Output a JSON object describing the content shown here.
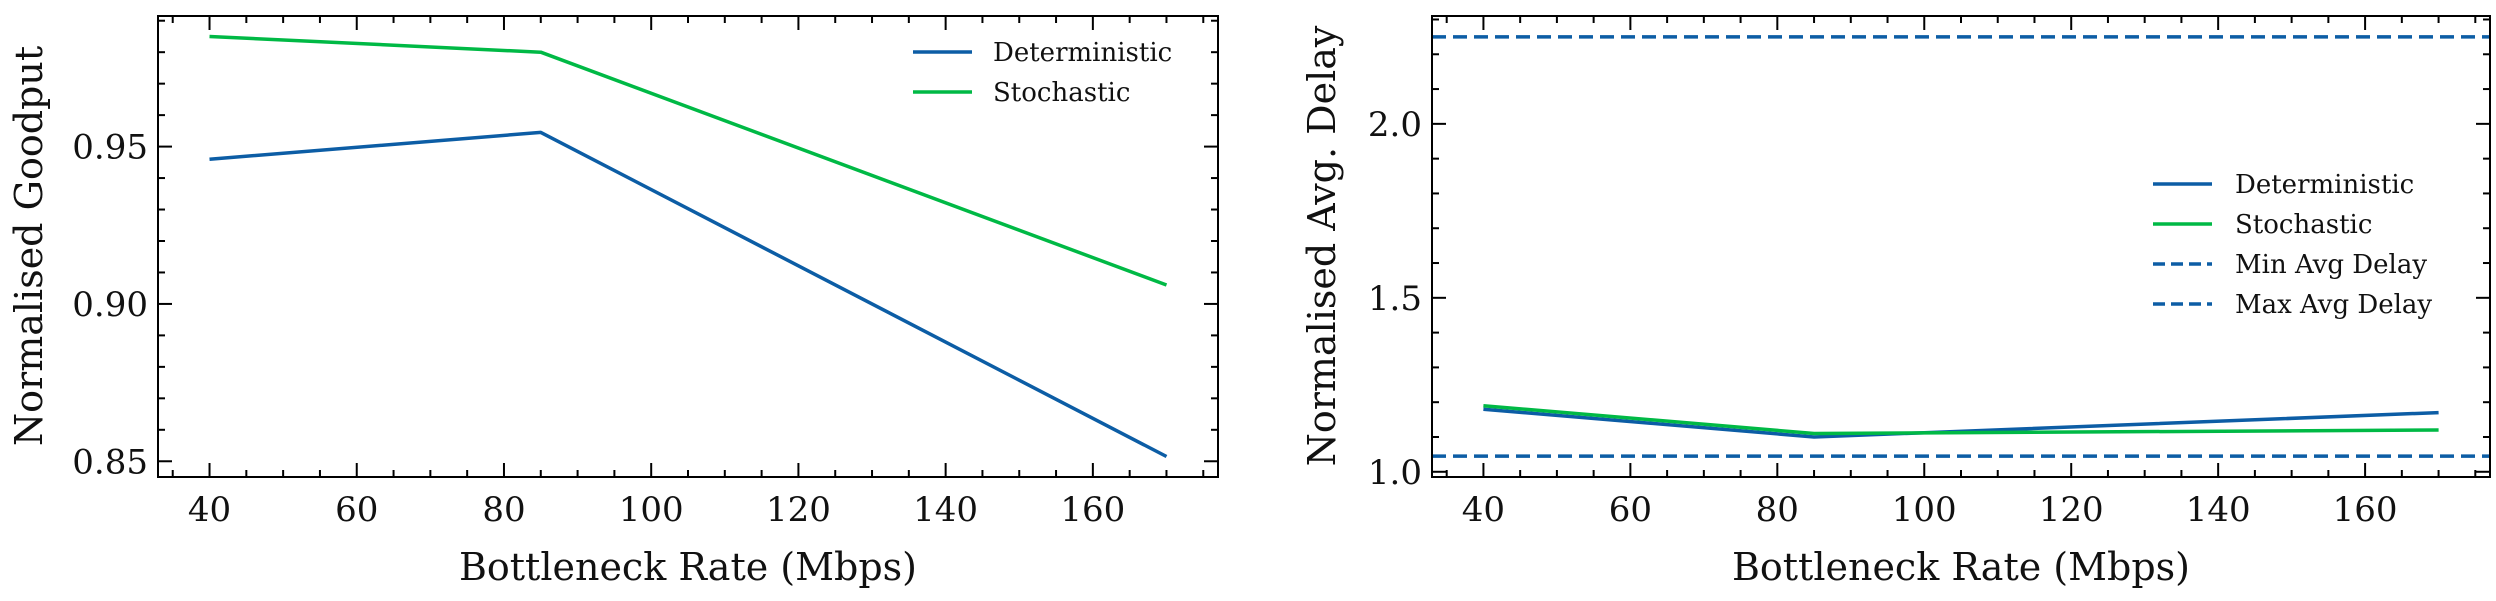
{
  "colors": {
    "blue": "#0C5DA5",
    "green": "#00B945",
    "axis": "#000000"
  },
  "chart_data": [
    {
      "type": "line",
      "xlabel": "Bottleneck Rate (Mbps)",
      "ylabel": "Normalised Goodput",
      "xlim": [
        33,
        177
      ],
      "ylim": [
        0.845,
        0.9915
      ],
      "xticks": [
        40,
        60,
        80,
        100,
        120,
        140,
        160
      ],
      "xtick_labels": [
        "40",
        "60",
        "80",
        "100",
        "120",
        "140",
        "160"
      ],
      "yticks": [
        0.85,
        0.9,
        0.95
      ],
      "ytick_labels": [
        "0.85",
        "0.90",
        "0.95"
      ],
      "x": [
        40,
        85,
        170
      ],
      "series": [
        {
          "name": "Deterministic",
          "values": [
            0.946,
            0.9545,
            0.8515
          ],
          "color": "#0C5DA5",
          "style": "solid"
        },
        {
          "name": "Stochastic",
          "values": [
            0.985,
            0.98,
            0.906
          ],
          "color": "#00B945",
          "style": "solid"
        }
      ],
      "legend": "top-right",
      "grid": false
    },
    {
      "type": "line",
      "xlabel": "Bottleneck Rate (Mbps)",
      "ylabel": "Normalised Avg. Delay",
      "xlim": [
        33,
        177
      ],
      "ylim": [
        0.985,
        2.31
      ],
      "xticks": [
        40,
        60,
        80,
        100,
        120,
        140,
        160
      ],
      "xtick_labels": [
        "40",
        "60",
        "80",
        "100",
        "120",
        "140",
        "160"
      ],
      "yticks": [
        1.0,
        1.5,
        2.0
      ],
      "ytick_labels": [
        "1.0",
        "1.5",
        "2.0"
      ],
      "x": [
        40,
        85,
        170
      ],
      "series": [
        {
          "name": "Deterministic",
          "values": [
            1.18,
            1.1,
            1.17
          ],
          "color": "#0C5DA5",
          "style": "solid"
        },
        {
          "name": "Stochastic",
          "values": [
            1.19,
            1.11,
            1.12
          ],
          "color": "#00B945",
          "style": "solid"
        }
      ],
      "hlines": [
        {
          "name": "Min Avg Delay",
          "value": 1.045,
          "color": "#0C5DA5",
          "style": "dashed"
        },
        {
          "name": "Max Avg Delay",
          "value": 2.25,
          "color": "#0C5DA5",
          "style": "dashed"
        }
      ],
      "legend": "center-right",
      "grid": false
    }
  ]
}
